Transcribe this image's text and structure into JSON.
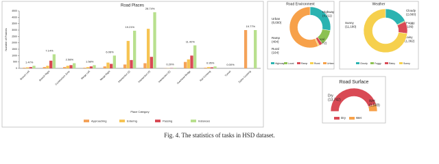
{
  "chart_data": [
    {
      "type": "bar",
      "title": "Road Places",
      "x_label": "Place Category",
      "y_label": "Number of Frames",
      "categories": [
        "Branch Left",
        "Branch Right",
        "Construction Zone",
        "Merge Left",
        "Merge Right",
        "Intersection (3)",
        "Intersection (4)",
        "Intersection (5)",
        "Overhead Bridge",
        "Rail Crossing",
        "Tunnel",
        "Zebra Crossing"
      ],
      "percent_labels": [
        "1.47%",
        "7.14%",
        "2.58%",
        "1.58%",
        "6.06%",
        "19.21%",
        "28.74%",
        "0.20%",
        "11.42%",
        "0.95%",
        "0.00%",
        "19.77%"
      ],
      "series": [
        {
          "name": "Approaching",
          "color": "#f4a259",
          "values": [
            50,
            100,
            100,
            50,
            150,
            300,
            400,
            10,
            500,
            50,
            0,
            3000
          ]
        },
        {
          "name": "Entering",
          "color": "#f6c453",
          "values": [
            80,
            200,
            200,
            100,
            450,
            2150,
            3100,
            20,
            700,
            100,
            0,
            0
          ]
        },
        {
          "name": "Passing",
          "color": "#d94a55",
          "values": [
            100,
            600,
            250,
            150,
            350,
            650,
            900,
            20,
            1000,
            80,
            0,
            0
          ]
        },
        {
          "name": "Instances",
          "color": "#b8e08e",
          "values": [
            200,
            1100,
            400,
            250,
            1000,
            2950,
            4400,
            40,
            1800,
            150,
            0,
            3000
          ]
        }
      ],
      "ylim": [
        0,
        4500
      ],
      "yticks": [
        0,
        500,
        1000,
        1500,
        2000,
        2500,
        3000,
        3500,
        4000,
        4500
      ],
      "grid": false
    },
    {
      "type": "donut",
      "title": "Road Environment",
      "categories": [
        "Highway",
        "Local",
        "Ramp",
        "Rural",
        "Urban"
      ],
      "values": [
        4211,
        1872,
        404,
        164,
        8660
      ],
      "value_labels": [
        "(4,211)",
        "(1,872)",
        "(404)",
        "(164)",
        "(8,660)"
      ],
      "colors": [
        "#2bb3b1",
        "#8cc152",
        "#d94a55",
        "#f6d04d",
        "#f7a14a"
      ]
    },
    {
      "type": "donut",
      "title": "Weather",
      "categories": [
        "Cloudy",
        "Foggy",
        "Rainy",
        "Sunny"
      ],
      "values": [
        2660,
        109,
        1362,
        11180
      ],
      "value_labels": [
        "(2,660)",
        "(109)",
        "(1,362)",
        "(11,180)"
      ],
      "colors": [
        "#2bb3b1",
        "#8cc152",
        "#d94a55",
        "#f6d04d"
      ]
    },
    {
      "type": "semidonut",
      "title": "Road Surface",
      "categories": [
        "Dry",
        "Wet"
      ],
      "values": [
        13742,
        1569
      ],
      "value_labels": [
        "(13,742)",
        "(1,569)"
      ],
      "colors": [
        "#d94a55",
        "#f7a14a"
      ]
    }
  ],
  "caption": "Fig. 4.   The statistics of tasks in HSD dataset."
}
